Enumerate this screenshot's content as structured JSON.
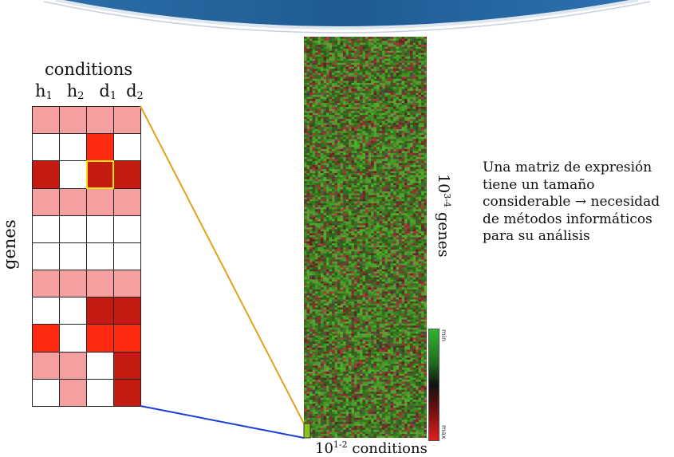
{
  "slide": {
    "description": "Una matriz de expresión tiene un tamaño considerable → necesidad de métodos informáticos para su análisis"
  },
  "small_matrix": {
    "top_label": "conditions",
    "side_label": "genes",
    "columns": [
      {
        "base": "h",
        "sub": "1"
      },
      {
        "base": "h",
        "sub": "2"
      },
      {
        "base": "d",
        "sub": "1"
      },
      {
        "base": "d",
        "sub": "2"
      }
    ],
    "levels": [
      [
        1,
        1,
        1,
        1
      ],
      [
        0,
        0,
        2,
        0
      ],
      [
        3,
        0,
        3,
        3
      ],
      [
        1,
        1,
        1,
        1
      ],
      [
        0,
        0,
        0,
        0
      ],
      [
        0,
        0,
        0,
        0
      ],
      [
        1,
        1,
        1,
        1
      ],
      [
        0,
        0,
        3,
        3
      ],
      [
        2,
        0,
        2,
        2
      ],
      [
        1,
        1,
        0,
        3
      ],
      [
        0,
        1,
        0,
        3
      ]
    ],
    "highlight": {
      "row": 2,
      "col": 2
    },
    "colors": {
      "0": "#ffffff",
      "1": "#f5a0a0",
      "2": "#ff2a12",
      "3": "#c41a12",
      "highlight": "#ffe600"
    }
  },
  "large_matrix": {
    "genes_base": "10",
    "genes_sup": "3-4",
    "genes_word": "genes",
    "cond_base": "10",
    "cond_sup": "1-2",
    "cond_word": "conditions",
    "scale_min": "min",
    "scale_max": "max"
  },
  "connector_colors": {
    "top": "#e2a21c",
    "bottom": "#1a3fd6"
  }
}
